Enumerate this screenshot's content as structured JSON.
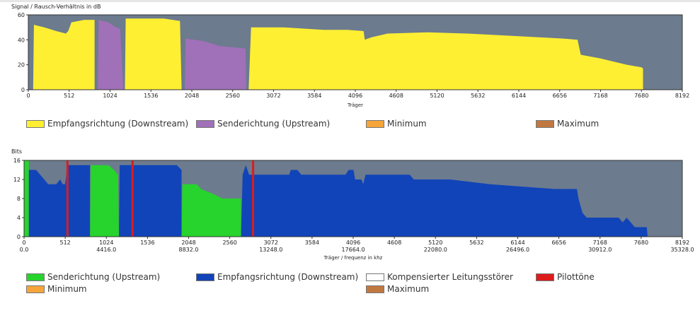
{
  "colors": {
    "plot_bg": "#6c7b8e",
    "downstream_snr": "#ffef33",
    "upstream_snr": "#a070b8",
    "minimum": "#f5a53a",
    "maximum": "#c07840",
    "upstream_bits": "#27d32d",
    "downstream_bits": "#1144b8",
    "compensated": "#ffffff",
    "pilot": "#dd1c1c"
  },
  "chart_data": [
    {
      "type": "area",
      "title": "Signal / Rausch-Verhältnis in dB",
      "xlabel": "Träger",
      "ylabel": "",
      "xlim": [
        0,
        8192
      ],
      "ylim": [
        0,
        60
      ],
      "yticks": [
        "0",
        "20",
        "40",
        "60"
      ],
      "xticks": [
        "0",
        "512",
        "1024",
        "1536",
        "2048",
        "2560",
        "3072",
        "3584",
        "4096",
        "4608",
        "5120",
        "5632",
        "6144",
        "6656",
        "7168",
        "7680",
        "8192"
      ],
      "series": [
        {
          "name": "Empfangsrichtung (Downstream)",
          "color_key": "downstream_snr",
          "segments": [
            [
              [
                60,
                0
              ],
              [
                70,
                52
              ],
              [
                200,
                50
              ],
              [
                350,
                47
              ],
              [
                470,
                45
              ],
              [
                500,
                47
              ],
              [
                540,
                54
              ],
              [
                700,
                56
              ],
              [
                830,
                56
              ],
              [
                830,
                0
              ]
            ],
            [
              [
                1210,
                0
              ],
              [
                1220,
                57
              ],
              [
                1700,
                57
              ],
              [
                1900,
                55
              ],
              [
                1920,
                0
              ]
            ],
            [
              [
                2760,
                0
              ],
              [
                2790,
                50
              ],
              [
                3200,
                50
              ],
              [
                3700,
                48
              ],
              [
                4000,
                48
              ],
              [
                4200,
                47
              ],
              [
                4215,
                40
              ],
              [
                4300,
                42
              ],
              [
                4500,
                45
              ],
              [
                5000,
                46
              ],
              [
                5500,
                45
              ],
              [
                5800,
                44
              ],
              [
                6100,
                43
              ],
              [
                6700,
                41
              ],
              [
                6880,
                40
              ],
              [
                6920,
                28
              ],
              [
                7168,
                25
              ],
              [
                7500,
                20
              ],
              [
                7680,
                18
              ],
              [
                7700,
                17
              ],
              [
                7700,
                0
              ]
            ]
          ]
        },
        {
          "name": "Senderichtung (Upstream)",
          "color_key": "upstream_snr",
          "segments": [
            [
              [
                870,
                0
              ],
              [
                880,
                56
              ],
              [
                1000,
                54
              ],
              [
                1100,
                50
              ],
              [
                1150,
                49
              ],
              [
                1190,
                0
              ]
            ],
            [
              [
                1960,
                0
              ],
              [
                1970,
                41
              ],
              [
                2200,
                39
              ],
              [
                2400,
                35
              ],
              [
                2560,
                34
              ],
              [
                2720,
                33
              ],
              [
                2730,
                0
              ]
            ]
          ]
        }
      ],
      "legend": [
        {
          "label": "Empfangsrichtung (Downstream)",
          "color_key": "downstream_snr"
        },
        {
          "label": "Senderichtung (Upstream)",
          "color_key": "upstream_snr"
        },
        {
          "label": "Minimum",
          "color_key": "minimum"
        },
        {
          "label": "Maximum",
          "color_key": "maximum"
        }
      ]
    },
    {
      "type": "area",
      "title": "Bits",
      "xlabel": "Träger / frequenz in khz",
      "ylabel": "",
      "xlim": [
        0,
        8192
      ],
      "ylim": [
        0,
        16
      ],
      "yticks": [
        "0",
        "4",
        "8",
        "12",
        "16"
      ],
      "xticks": [
        "0",
        "512",
        "1024",
        "1536",
        "2048",
        "2560",
        "3072",
        "3584",
        "4096",
        "4608",
        "5120",
        "5632",
        "6144",
        "6656",
        "7168",
        "7680",
        "8192"
      ],
      "freq_ticks": [
        "0.0",
        "4416.0",
        "8832.0",
        "13248.0",
        "17664.0",
        "22080.0",
        "26496.0",
        "30912.0",
        "35328.0"
      ],
      "series": [
        {
          "name": "Senderichtung (Upstream)",
          "color_key": "upstream_bits",
          "segments": [
            [
              [
                0,
                0
              ],
              [
                0,
                16
              ],
              [
                60,
                16
              ],
              [
                60,
                0
              ]
            ],
            [
              [
                820,
                0
              ],
              [
                830,
                15
              ],
              [
                1050,
                15
              ],
              [
                1120,
                14
              ],
              [
                1170,
                13
              ],
              [
                1180,
                0
              ]
            ],
            [
              [
                1960,
                0
              ],
              [
                1970,
                11
              ],
              [
                2150,
                11
              ],
              [
                2200,
                10
              ],
              [
                2350,
                9
              ],
              [
                2470,
                8
              ],
              [
                2700,
                8
              ],
              [
                2700,
                0
              ]
            ]
          ]
        },
        {
          "name": "Empfangsrichtung (Downstream)",
          "color_key": "downstream_bits",
          "segments": [
            [
              [
                60,
                0
              ],
              [
                60,
                14
              ],
              [
                150,
                14
              ],
              [
                200,
                13
              ],
              [
                250,
                12
              ],
              [
                300,
                11
              ],
              [
                400,
                11
              ],
              [
                450,
                12
              ],
              [
                480,
                11
              ],
              [
                510,
                11
              ],
              [
                520,
                12
              ],
              [
                540,
                15
              ],
              [
                820,
                15
              ],
              [
                820,
                0
              ]
            ],
            [
              [
                1180,
                0
              ],
              [
                1190,
                15
              ],
              [
                1900,
                15
              ],
              [
                1960,
                14
              ],
              [
                1960,
                0
              ]
            ],
            [
              [
                2700,
                0
              ],
              [
                2720,
                13
              ],
              [
                2760,
                15
              ],
              [
                2800,
                13
              ],
              [
                3200,
                13
              ],
              [
                3300,
                13
              ],
              [
                3320,
                14
              ],
              [
                3400,
                14
              ],
              [
                3450,
                13
              ],
              [
                4000,
                13
              ],
              [
                4040,
                14
              ],
              [
                4100,
                14
              ],
              [
                4120,
                12
              ],
              [
                4200,
                12
              ],
              [
                4220,
                11
              ],
              [
                4250,
                13
              ],
              [
                4800,
                13
              ],
              [
                4850,
                12
              ],
              [
                5300,
                12
              ],
              [
                5800,
                11
              ],
              [
                6600,
                10
              ],
              [
                6880,
                10
              ],
              [
                6900,
                8
              ],
              [
                6950,
                5
              ],
              [
                7000,
                4
              ],
              [
                7400,
                4
              ],
              [
                7450,
                3
              ],
              [
                7500,
                4
              ],
              [
                7600,
                2
              ],
              [
                7750,
                2
              ],
              [
                7760,
                0
              ]
            ]
          ]
        }
      ],
      "pilot_tones": [
        540,
        1350,
        2850
      ],
      "legend": [
        {
          "label": "Senderichtung (Upstream)",
          "color_key": "upstream_bits"
        },
        {
          "label": "Empfangsrichtung (Downstream)",
          "color_key": "downstream_bits"
        },
        {
          "label": "Kompensierter Leitungsstörer",
          "color_key": "compensated"
        },
        {
          "label": "Pilottöne",
          "color_key": "pilot"
        },
        {
          "label": "Minimum",
          "color_key": "minimum"
        },
        {
          "label": "Maximum",
          "color_key": "maximum"
        }
      ]
    }
  ]
}
